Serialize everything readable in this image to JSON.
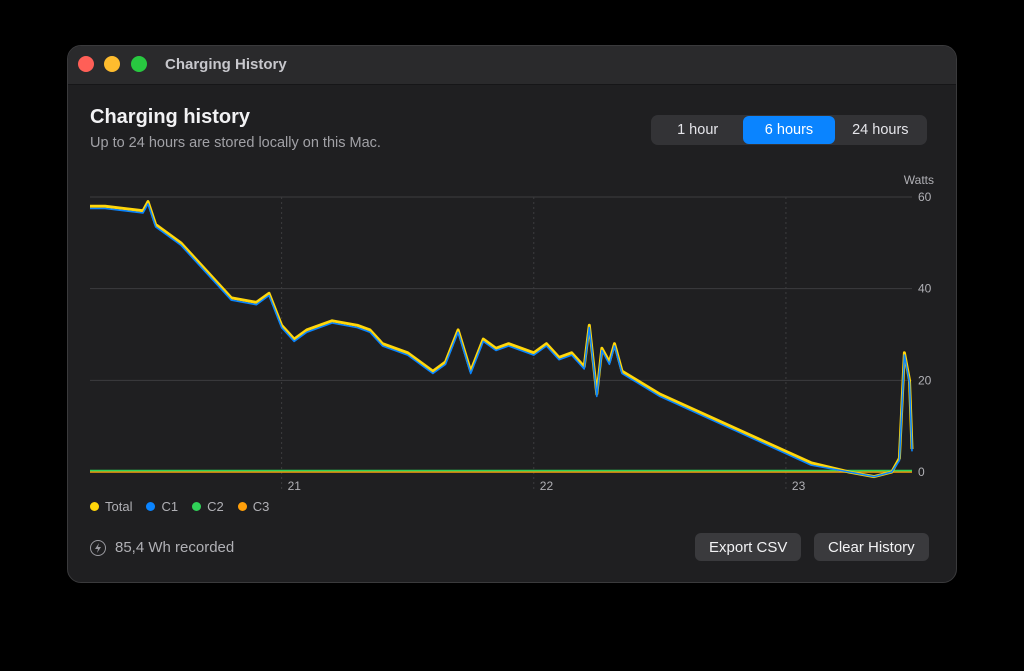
{
  "window": {
    "title": "Charging History"
  },
  "header": {
    "title": "Charging history",
    "subtitle": "Up to 24 hours are stored locally on this Mac."
  },
  "range": {
    "options": [
      "1 hour",
      "6 hours",
      "24 hours"
    ],
    "selected": "6 hours"
  },
  "legend": [
    {
      "label": "Total",
      "color": "#ffd60a"
    },
    {
      "label": "C1",
      "color": "#0a84ff"
    },
    {
      "label": "C2",
      "color": "#30d158"
    },
    {
      "label": "C3",
      "color": "#ff9f0a"
    }
  ],
  "footer": {
    "recorded": "85,4 Wh recorded",
    "export_label": "Export CSV",
    "clear_label": "Clear History"
  },
  "chart_data": {
    "type": "line",
    "ylabel": "Watts",
    "ylim": [
      0,
      60
    ],
    "yticks": [
      0,
      20,
      40,
      60
    ],
    "x_ticks": [
      "21",
      "22",
      "23"
    ],
    "x_range_hours": [
      20.24,
      23.5
    ],
    "x_tick_values": [
      21,
      22,
      23
    ],
    "grid": true,
    "legend_position": "bottom-left",
    "series": [
      {
        "name": "Total",
        "color": "#ffd60a",
        "x": [
          20.24,
          20.3,
          20.45,
          20.47,
          20.5,
          20.6,
          20.7,
          20.8,
          20.9,
          20.95,
          21.0,
          21.05,
          21.1,
          21.2,
          21.3,
          21.35,
          21.4,
          21.5,
          21.6,
          21.65,
          21.7,
          21.75,
          21.8,
          21.85,
          21.9,
          22.0,
          22.05,
          22.1,
          22.15,
          22.2,
          22.22,
          22.25,
          22.27,
          22.3,
          22.32,
          22.35,
          22.5,
          22.7,
          22.9,
          23.1,
          23.25,
          23.35,
          23.42,
          23.45,
          23.47,
          23.49,
          23.5
        ],
        "y": [
          58,
          58,
          57,
          59,
          54,
          50,
          44,
          38,
          37,
          39,
          32,
          29,
          31,
          33,
          32,
          31,
          28,
          26,
          22,
          24,
          31,
          22,
          29,
          27,
          28,
          26,
          28,
          25,
          26,
          23,
          32,
          17,
          27,
          24,
          28,
          22,
          17,
          12,
          7,
          2,
          0,
          -1,
          0,
          3,
          26,
          20,
          5
        ]
      },
      {
        "name": "C1",
        "color": "#0a84ff",
        "x": [
          20.24,
          20.3,
          20.45,
          20.47,
          20.5,
          20.6,
          20.7,
          20.8,
          20.9,
          20.95,
          21.0,
          21.05,
          21.1,
          21.2,
          21.3,
          21.35,
          21.4,
          21.5,
          21.6,
          21.65,
          21.7,
          21.75,
          21.8,
          21.85,
          21.9,
          22.0,
          22.05,
          22.1,
          22.15,
          22.2,
          22.22,
          22.25,
          22.27,
          22.3,
          22.32,
          22.35,
          22.5,
          22.7,
          22.9,
          23.1,
          23.25,
          23.35,
          23.42,
          23.45,
          23.47,
          23.49,
          23.5
        ],
        "y": [
          57.5,
          57.5,
          56.5,
          58.5,
          53.5,
          49.5,
          43.5,
          37.5,
          36.5,
          38.5,
          31.5,
          28.5,
          30.5,
          32.5,
          31.5,
          30.5,
          27.5,
          25.5,
          21.5,
          23.5,
          30.5,
          21.5,
          28.5,
          26.5,
          27.5,
          25.5,
          27.5,
          24.5,
          25.5,
          22.5,
          31.5,
          16.5,
          26.5,
          23.5,
          27.5,
          21.5,
          16.5,
          11.5,
          6.5,
          1.5,
          0,
          -1,
          0,
          2.5,
          25.5,
          19.5,
          4.5
        ]
      },
      {
        "name": "C2",
        "color": "#30d158",
        "x": [
          20.24,
          21.0,
          22.0,
          22.3,
          23.0,
          23.5
        ],
        "y": [
          0.3,
          0.3,
          0.3,
          0.3,
          0.3,
          0.3
        ]
      },
      {
        "name": "C3",
        "color": "#ff9f0a",
        "x": [
          20.24,
          21.0,
          22.0,
          23.0,
          23.5
        ],
        "y": [
          0,
          0,
          0,
          0,
          0
        ]
      }
    ]
  }
}
